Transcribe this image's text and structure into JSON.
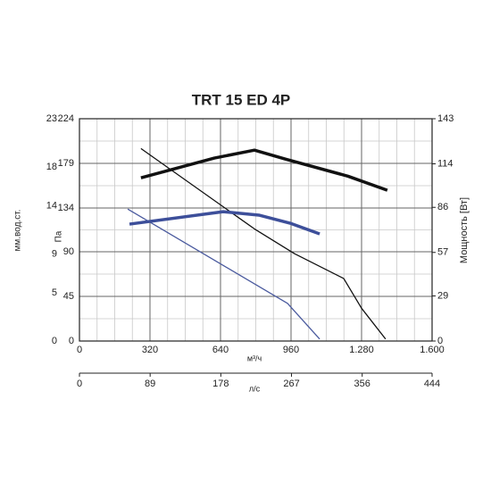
{
  "chart_data": {
    "type": "line",
    "title": "TRT 15 ED 4P",
    "x_label": "м³/ч",
    "y_label": "Па",
    "y2_label": "Мощность [Вт]",
    "xlim": [
      0,
      1600
    ],
    "xticks": [
      0,
      320,
      640,
      960,
      {
        "value": 1280,
        "label": "1.280"
      },
      {
        "value": 1600,
        "label": "1.600"
      }
    ],
    "ylim": [
      0,
      224
    ],
    "yticks": [
      0,
      45,
      90,
      134,
      179,
      224
    ],
    "y2lim": [
      0,
      143
    ],
    "y2ticks": [
      0,
      29,
      57,
      86,
      114,
      143
    ],
    "x2axis": {
      "label": "л/с",
      "lim": [
        0,
        444
      ],
      "ticks": [
        0,
        89,
        178,
        267,
        356,
        444
      ]
    },
    "y3axis": {
      "label": "мм.вод.ст.",
      "lim": [
        0,
        23
      ],
      "ticks": [
        0,
        5,
        9,
        14,
        18,
        23
      ]
    },
    "grid": true,
    "series": [
      {
        "color": "#111111",
        "linewidth": 1.3,
        "x": [
          279,
          794,
          976,
          1199,
          1280,
          1389
        ],
        "values": [
          194,
          113,
          88,
          63,
          33,
          2
        ]
      },
      {
        "color": "#4a5a9e",
        "linewidth": 1.3,
        "x": [
          219,
          944,
          1090
        ],
        "values": [
          133,
          38,
          2
        ]
      },
      {
        "color": "#111111",
        "linewidth": 3.5,
        "axis": "y2",
        "x": [
          279,
          612,
          794,
          936,
          1219,
          1397
        ],
        "values": [
          105,
          117.7,
          122.8,
          117,
          106,
          97
        ]
      },
      {
        "color": "#3d4f9a",
        "linewidth": 3.5,
        "axis": "y2",
        "x": [
          227,
          652,
          814,
          956,
          1090
        ],
        "values": [
          75.2,
          83.2,
          81,
          75.8,
          68.9
        ]
      }
    ]
  }
}
